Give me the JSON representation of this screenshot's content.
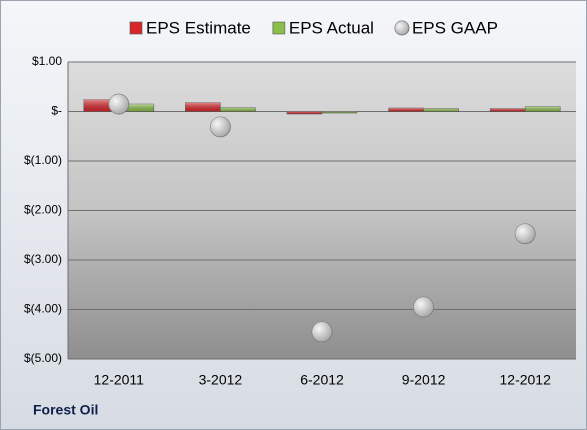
{
  "chart_data": {
    "type": "bar",
    "categories": [
      "12-2011",
      "3-2012",
      "6-2012",
      "9-2012",
      "12-2012"
    ],
    "series": [
      {
        "name": "EPS Estimate",
        "color": "#d9262c",
        "values": [
          0.24,
          0.18,
          -0.05,
          0.07,
          0.06
        ]
      },
      {
        "name": "EPS Actual",
        "color": "#8cbf4a",
        "values": [
          0.15,
          0.08,
          -0.03,
          0.06,
          0.1
        ]
      },
      {
        "name": "EPS GAAP",
        "type": "scatter",
        "color": "#a6a6a6",
        "values": [
          0.15,
          -0.31,
          -4.45,
          -3.95,
          -2.47
        ]
      }
    ],
    "ylim": [
      -5,
      1
    ],
    "yticks": [
      {
        "value": 1,
        "label": "$1.00"
      },
      {
        "value": 0,
        "label": "$-"
      },
      {
        "value": -1,
        "label": "$(1.00)"
      },
      {
        "value": -2,
        "label": "$(2.00)"
      },
      {
        "value": -3,
        "label": "$(3.00)"
      },
      {
        "value": -4,
        "label": "$(4.00)"
      },
      {
        "value": -5,
        "label": "$(5.00)"
      }
    ],
    "grid": true,
    "legend": "top",
    "company": "Forest Oil"
  }
}
